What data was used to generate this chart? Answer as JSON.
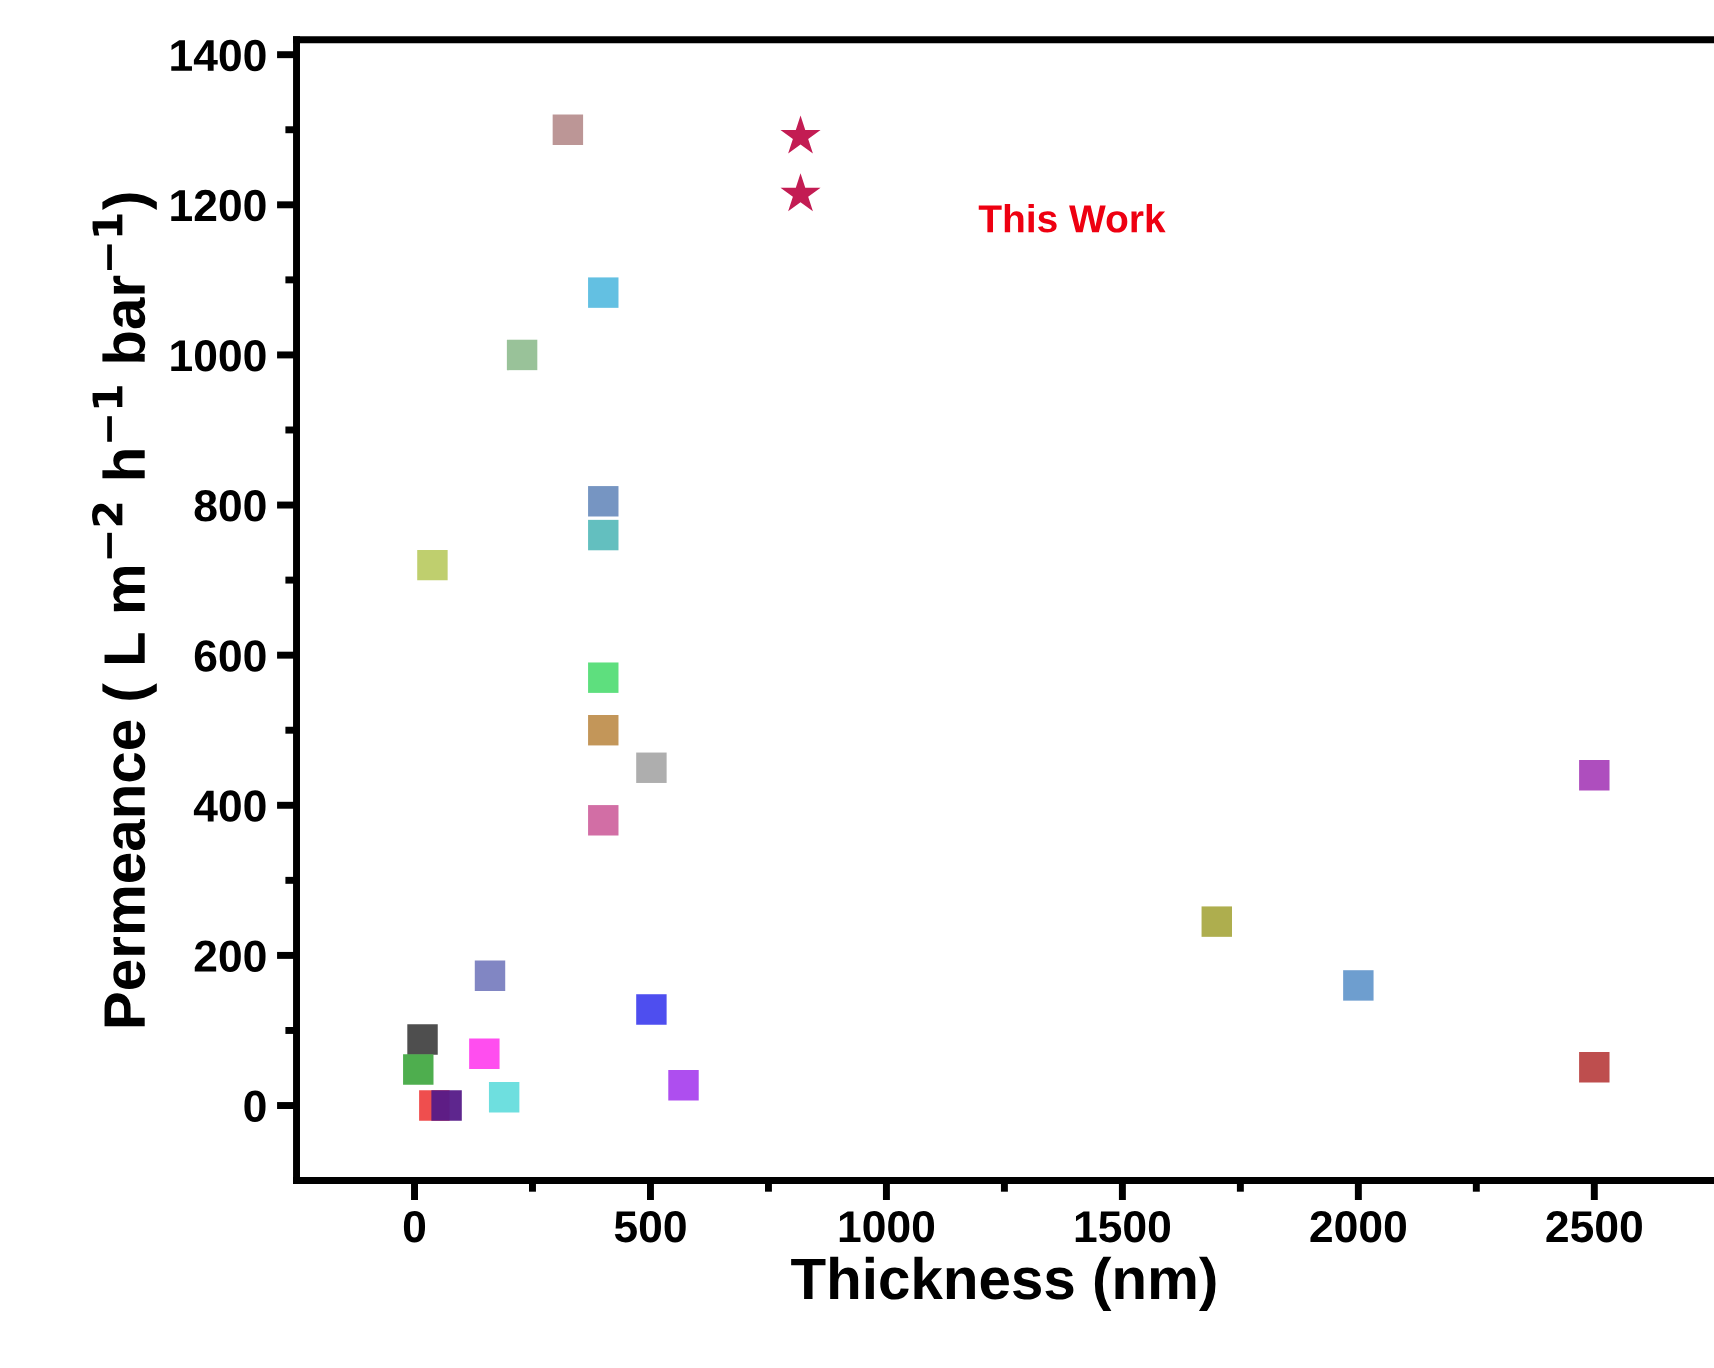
{
  "chart_data": {
    "type": "scatter",
    "xlabel": "Thickness (nm)",
    "ylabel": "Permeance ( L m$^{−2}$ h$^{−1}$ bar$^{−1}$)",
    "xlim": [
      -250,
      2750
    ],
    "ylim": [
      -100,
      1420
    ],
    "xticks": [
      0,
      {
        "value": 250,
        "label": null
      },
      500,
      {
        "value": 750,
        "label": null
      },
      1000,
      {
        "value": 1250,
        "label": null
      },
      1500,
      {
        "value": 1750,
        "label": null
      },
      2000,
      {
        "value": 2250,
        "label": null
      },
      2500
    ],
    "yticks": [
      0,
      {
        "value": 100,
        "label": null
      },
      200,
      {
        "value": 300,
        "label": null
      },
      400,
      {
        "value": 500,
        "label": null
      },
      600,
      {
        "value": 700,
        "label": null
      },
      800,
      {
        "value": 900,
        "label": null
      },
      1000,
      {
        "value": 1100,
        "label": null
      },
      1200,
      {
        "value": 1300,
        "label": null
      },
      1400
    ],
    "grid": false,
    "legend": false,
    "series": [
      {
        "marker": "square",
        "x": [
          325,
          400,
          228,
          400,
          400,
          38,
          400,
          400,
          502,
          400,
          1700,
          160,
          502,
          17,
          148,
          8,
          570,
          190,
          42,
          68,
          2500,
          2000,
          2500
        ],
        "values": [
          1300,
          1083,
          1000,
          805,
          760,
          720,
          570,
          500,
          450,
          380,
          245,
          173,
          128,
          88,
          69,
          48,
          27,
          11,
          0,
          0,
          440,
          160,
          51
        ],
        "colors": [
          "#b89090",
          "#5bbde0",
          "#93bf93",
          "#6f8fbf",
          "#5bbcbc",
          "#bccc66",
          "#55dd77",
          "#c09050",
          "#aaaaaa",
          "#d066a0",
          "#aaaa44",
          "#7a80c0",
          "#4444ee",
          "#444444",
          "#ff44ee",
          "#44aa44",
          "#aa44ee",
          "#66dddd",
          "#ee4444",
          "#551a88",
          "#aa44bb",
          "#6699cc",
          "#bb4444"
        ]
      },
      {
        "marker": "star",
        "name": "This Work",
        "color": "#c0104a",
        "x": [
          818,
          818
        ],
        "values": [
          1291,
          1214
        ]
      }
    ]
  }
}
